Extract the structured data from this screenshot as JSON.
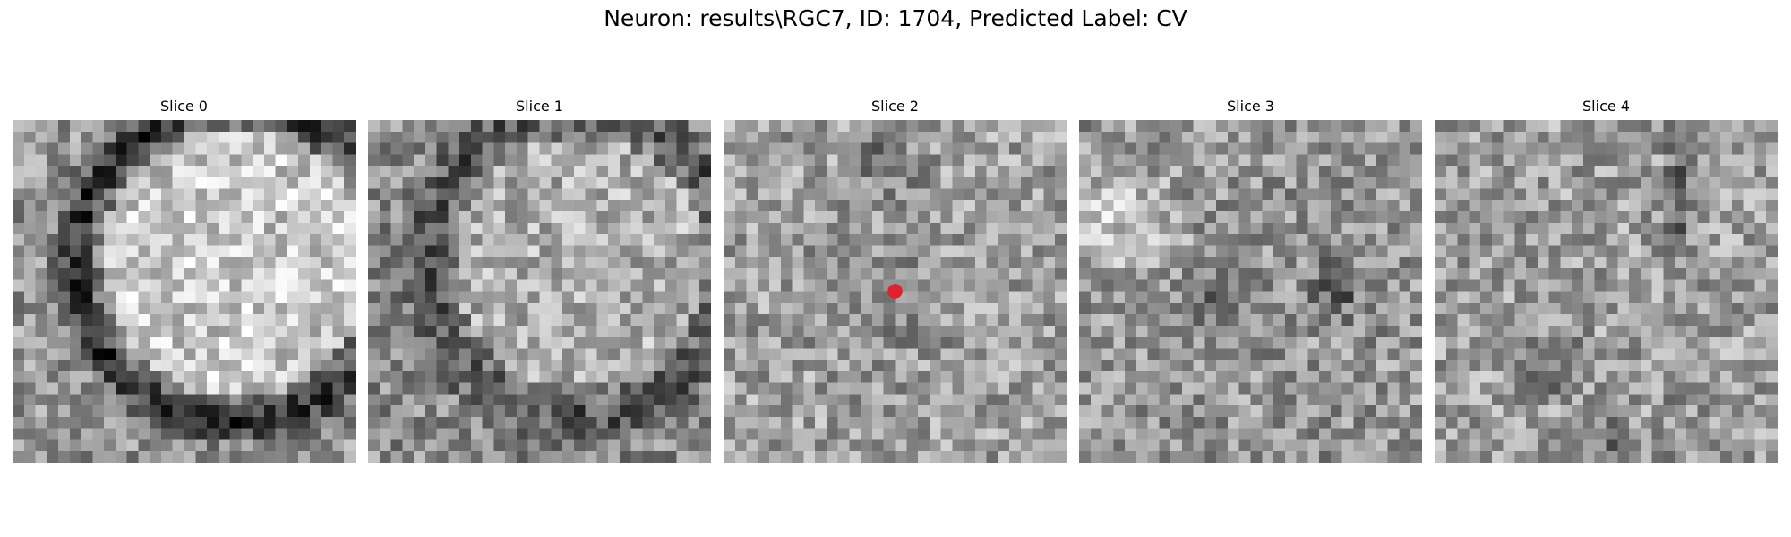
{
  "figure": {
    "title": "Neuron: results\\RGC7, ID: 1704, Predicted Label: CV"
  },
  "slices": [
    {
      "label": "Slice 0",
      "pattern": "curved-dark-boundary"
    },
    {
      "label": "Slice 1",
      "pattern": "faint-curved-boundary"
    },
    {
      "label": "Slice 2",
      "pattern": "noisy-center",
      "marker": {
        "color": "#e0202a"
      }
    },
    {
      "label": "Slice 3",
      "pattern": "dark-blobs"
    },
    {
      "label": "Slice 4",
      "pattern": "noisy-streak"
    }
  ],
  "colors": {
    "marker": "#e0202a",
    "colormap": "grayscale"
  }
}
